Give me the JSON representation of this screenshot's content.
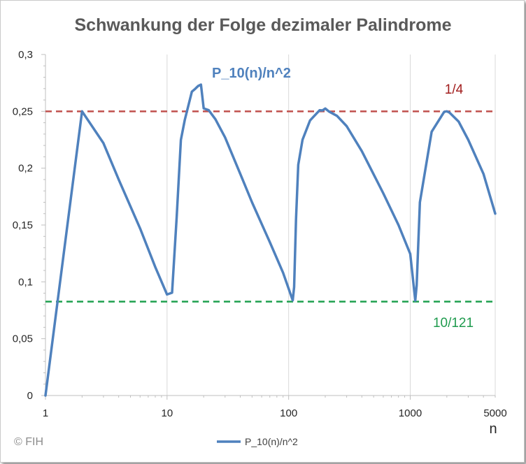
{
  "chart_data": {
    "type": "line",
    "title": "Schwankung der Folge dezimaler Palindrome",
    "xlabel": "n",
    "ylabel": "",
    "x_scale": "log",
    "xlim": [
      1,
      5000
    ],
    "ylim": [
      0,
      0.3
    ],
    "x_tick_labels": [
      "1",
      "10",
      "100",
      "1000",
      "5000"
    ],
    "x_ticks": [
      1,
      10,
      100,
      1000,
      5000
    ],
    "y_tick_labels": [
      "0",
      "0,05",
      "0,1",
      "0,15",
      "0,2",
      "0,25",
      "0,3"
    ],
    "y_ticks": [
      0,
      0.05,
      0.1,
      0.15,
      0.2,
      0.25,
      0.3
    ],
    "grid": "vertical major gridlines",
    "legend": "bottom-center",
    "series": [
      {
        "name": "P_10(n)/n^2",
        "color": "#4f81bd",
        "x": [
          1,
          2,
          3,
          4,
          6,
          8,
          10,
          11,
          12,
          13,
          14,
          16,
          17,
          18,
          19,
          20,
          22,
          25,
          30,
          40,
          50,
          70,
          90,
          108,
          111,
          115,
          120,
          130,
          150,
          180,
          190,
          200,
          215,
          250,
          300,
          400,
          600,
          800,
          1000,
          1100,
          1130,
          1200,
          1500,
          1900,
          2000,
          2100,
          2500,
          3000,
          4000,
          5000
        ],
        "y": [
          0,
          0.25,
          0.222,
          0.19,
          0.147,
          0.113,
          0.0889,
          0.0904,
          0.157,
          0.2249,
          0.2425,
          0.2673,
          0.2697,
          0.2723,
          0.2735,
          0.2526,
          0.251,
          0.243,
          0.227,
          0.195,
          0.17,
          0.135,
          0.108,
          0.0837,
          0.0955,
          0.155,
          0.203,
          0.225,
          0.242,
          0.251,
          0.2508,
          0.2525,
          0.2498,
          0.246,
          0.237,
          0.215,
          0.178,
          0.15,
          0.1246,
          0.0836,
          0.097,
          0.17,
          0.232,
          0.2495,
          0.25,
          0.249,
          0.241,
          0.225,
          0.195,
          0.16
        ]
      }
    ],
    "reference_lines": [
      {
        "label": "1/4",
        "y": 0.25,
        "color": "#c0504d"
      },
      {
        "label": "10/121",
        "y": 0.08264,
        "color": "#1fa04f"
      }
    ],
    "series_label": "P_10(n)/n^2",
    "copyright": "© FIH"
  }
}
